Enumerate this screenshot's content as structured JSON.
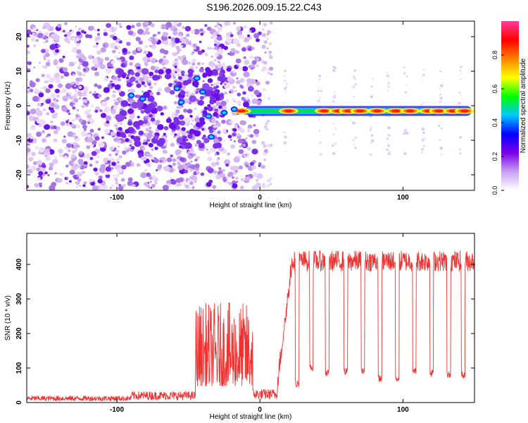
{
  "title": "S196.2026.009.15.22.C43",
  "chart_data": [
    {
      "type": "heatmap",
      "title": "",
      "xlabel": "Height of straight line (km)",
      "ylabel": "Frequency (Hz)",
      "xlim": [
        -163,
        150
      ],
      "ylim": [
        -24.5,
        24.5
      ],
      "xticks": [
        -100,
        0,
        100
      ],
      "xtick_labels": [
        "-100",
        "0",
        "100"
      ],
      "yticks": [
        -20,
        -10,
        0,
        10,
        20
      ],
      "ytick_labels": [
        "-20",
        "-10",
        "0",
        "10",
        "20"
      ],
      "colorbar": {
        "label": "Normalized spectral amplitude",
        "range": [
          0,
          1
        ],
        "ticks": [
          0.0,
          0.2,
          0.4,
          0.6,
          0.8
        ],
        "tick_labels": [
          "0.0",
          "0.2",
          "0.4",
          "0.6",
          "0.8"
        ],
        "colors": [
          "#ffffff",
          "#c8a0f0",
          "#7a00e8",
          "#0000ff",
          "#00c8ff",
          "#00ff00",
          "#ffff00",
          "#ff8000",
          "#ff0000",
          "#ff3c96"
        ]
      },
      "signal_band": {
        "x_start": -30,
        "x_end": 148,
        "frequency_hz": -1.5,
        "peak_heights_km": [
          -13,
          20,
          45,
          55,
          62,
          70,
          82,
          95,
          105,
          118,
          125,
          135,
          143
        ]
      },
      "noise_region": {
        "x_start": -163,
        "x_end": 5
      }
    },
    {
      "type": "line",
      "title": "",
      "xlabel": "Height of straight line (km)",
      "ylabel": "SNR (10 * v/v)",
      "xlim": [
        -163,
        150
      ],
      "ylim": [
        0,
        490
      ],
      "xticks": [
        -100,
        0,
        100
      ],
      "xtick_labels": [
        "-100",
        "0",
        "100"
      ],
      "yticks": [
        0,
        100,
        200,
        300,
        400
      ],
      "ytick_labels": [
        "0",
        "100",
        "200",
        "300",
        "400"
      ],
      "color": "#ee3333",
      "segments": [
        {
          "x_start": -163,
          "x_end": -90,
          "baseline": 15,
          "noise": 15
        },
        {
          "x_start": -90,
          "x_end": -45,
          "baseline": 25,
          "noise": 25
        },
        {
          "x_start": -45,
          "x_end": -5,
          "baseline": 120,
          "noise": 220
        },
        {
          "x_start": -5,
          "x_end": 15,
          "baseline": 30,
          "noise": 30
        },
        {
          "x_start": 15,
          "x_end": 150,
          "baseline": 410,
          "noise": 60
        }
      ],
      "dropouts": [
        {
          "x": 26,
          "min": 45
        },
        {
          "x": 36,
          "min": 90
        },
        {
          "x": 47,
          "min": 75
        },
        {
          "x": 60,
          "min": 80
        },
        {
          "x": 72,
          "min": 80
        },
        {
          "x": 84,
          "min": 60
        },
        {
          "x": 96,
          "min": 60
        },
        {
          "x": 108,
          "min": 80
        },
        {
          "x": 120,
          "min": 75
        },
        {
          "x": 132,
          "min": 70
        },
        {
          "x": 142,
          "min": 70
        }
      ]
    }
  ]
}
